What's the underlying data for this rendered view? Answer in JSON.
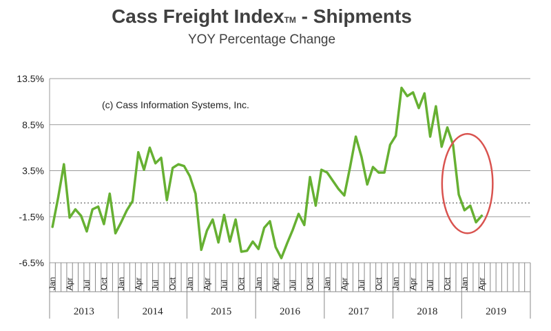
{
  "chart_data": {
    "type": "line",
    "title": "Cass Freight Index",
    "title_mark": "TM",
    "title_suffix": " - Shipments",
    "subtitle": "YOY Percentage Change",
    "annotation": "(c) Cass Information Systems, Inc.",
    "ylim": [
      -6.5,
      13.5
    ],
    "y_ticks": [
      "13.5%",
      "8.5%",
      "3.5%",
      "-1.5%",
      "-6.5%"
    ],
    "y_tick_values": [
      13.5,
      8.5,
      3.5,
      -1.5,
      -6.5
    ],
    "reference_line": 0,
    "grid": "horizontal",
    "x_start": "2013-01",
    "years": [
      "2013",
      "2014",
      "2015",
      "2016",
      "2017",
      "2018",
      "2019"
    ],
    "month_labels": [
      "Jan",
      "Apr",
      "Jul",
      "Oct"
    ],
    "highlight": {
      "description": "red circle",
      "from": "2018-11",
      "to": "2019-04"
    },
    "colors": {
      "line": "#66b032",
      "grid": "#9a9a9a",
      "highlight": "#d9534f"
    },
    "series": [
      {
        "values": [
          -2.6,
          0.6,
          4.2,
          -1.6,
          -0.7,
          -1.4,
          -3.1,
          -0.7,
          -0.4,
          -2.3,
          1.0,
          -3.3,
          -2.1,
          -0.8,
          0.2,
          5.5,
          3.6,
          6.0,
          4.3,
          4.9,
          0.3,
          3.8,
          4.2,
          4.0,
          2.9,
          1.0,
          -5.1,
          -3.0,
          -1.8,
          -4.3,
          -1.3,
          -4.2,
          -1.8,
          -5.3,
          -5.2,
          -4.2,
          -5.0,
          -2.7,
          -2.0,
          -4.8,
          -6.0,
          -4.4,
          -2.9,
          -1.2,
          -2.4,
          2.8,
          -0.3,
          3.6,
          3.3,
          2.4,
          1.5,
          0.8,
          3.9,
          7.2,
          5.0,
          2.0,
          3.9,
          3.3,
          3.3,
          6.3,
          7.3,
          12.5,
          11.6,
          12.0,
          10.3,
          11.9,
          7.2,
          10.5,
          6.1,
          8.2,
          6.3,
          0.9,
          -0.8,
          -0.3,
          -2.1,
          -1.4
        ]
      }
    ]
  }
}
